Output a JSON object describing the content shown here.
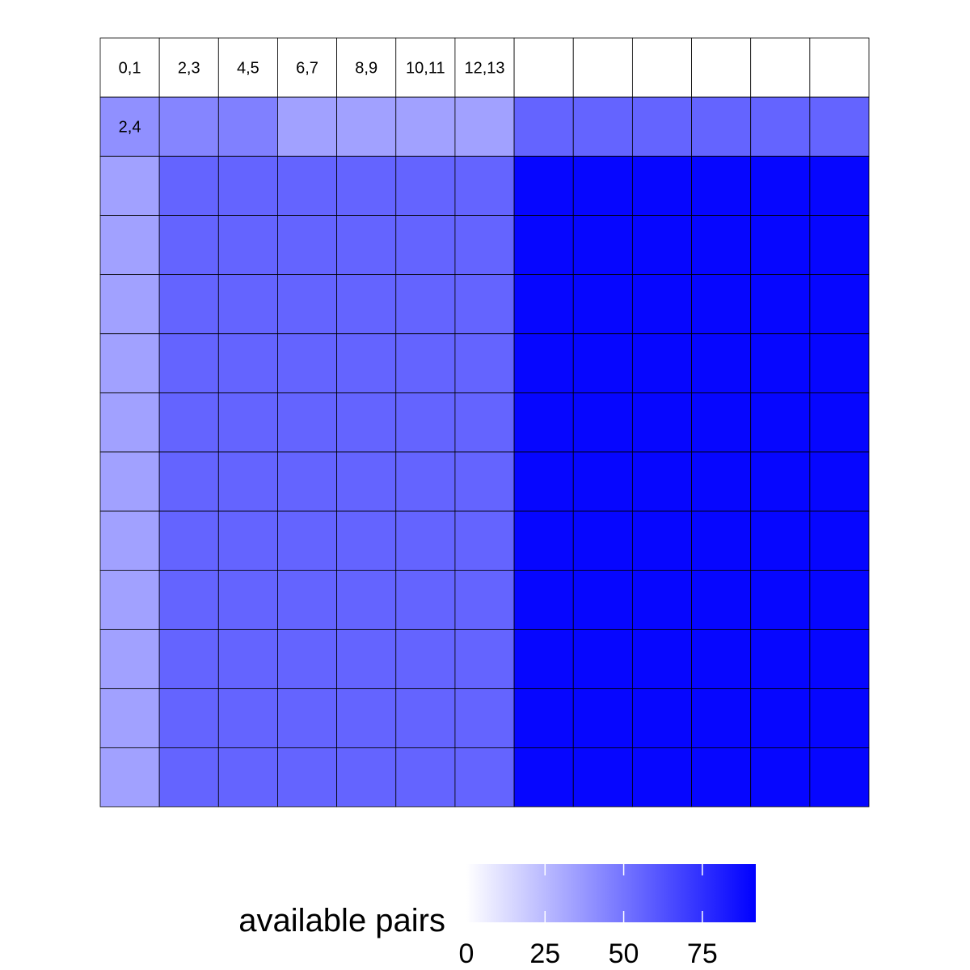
{
  "chart_data": {
    "type": "heatmap",
    "rows": 13,
    "cols": 13,
    "header_labels": [
      "0,1",
      "2,3",
      "4,5",
      "6,7",
      "8,9",
      "10,11",
      "12,13",
      "",
      "",
      "",
      "",
      "",
      ""
    ],
    "row_labels": [
      "",
      "2,4",
      "",
      "",
      "",
      "",
      "",
      "",
      "",
      "",
      "",
      "",
      ""
    ],
    "values": [
      [
        null,
        null,
        null,
        null,
        null,
        null,
        null,
        null,
        null,
        null,
        null,
        null,
        null
      ],
      [
        40,
        44,
        46,
        34,
        34,
        34,
        34,
        56,
        56,
        56,
        56,
        56,
        56
      ],
      [
        34,
        56,
        56,
        56,
        56,
        56,
        56,
        90,
        90,
        90,
        90,
        90,
        90
      ],
      [
        34,
        56,
        56,
        56,
        56,
        56,
        56,
        90,
        90,
        90,
        90,
        90,
        90
      ],
      [
        34,
        56,
        56,
        56,
        56,
        56,
        56,
        90,
        90,
        90,
        90,
        90,
        90
      ],
      [
        34,
        56,
        56,
        56,
        56,
        56,
        56,
        90,
        90,
        90,
        90,
        90,
        90
      ],
      [
        34,
        56,
        56,
        56,
        56,
        56,
        56,
        90,
        90,
        90,
        90,
        90,
        90
      ],
      [
        34,
        56,
        56,
        56,
        56,
        56,
        56,
        90,
        90,
        90,
        90,
        90,
        90
      ],
      [
        34,
        56,
        56,
        56,
        56,
        56,
        56,
        90,
        90,
        90,
        90,
        90,
        90
      ],
      [
        34,
        56,
        56,
        56,
        56,
        56,
        56,
        90,
        90,
        90,
        90,
        90,
        90
      ],
      [
        34,
        56,
        56,
        56,
        56,
        56,
        56,
        90,
        90,
        90,
        90,
        90,
        90
      ],
      [
        34,
        56,
        56,
        56,
        56,
        56,
        56,
        90,
        90,
        90,
        90,
        90,
        90
      ],
      [
        34,
        56,
        56,
        56,
        56,
        56,
        56,
        90,
        90,
        90,
        90,
        90,
        90
      ]
    ],
    "color_scale": {
      "low": "#ffffff",
      "high": "#0000ff",
      "min": 0,
      "max": 92
    },
    "legend": {
      "title": "available pairs",
      "ticks": [
        0,
        25,
        50,
        75
      ],
      "placement": "bottom"
    },
    "grid": true
  }
}
